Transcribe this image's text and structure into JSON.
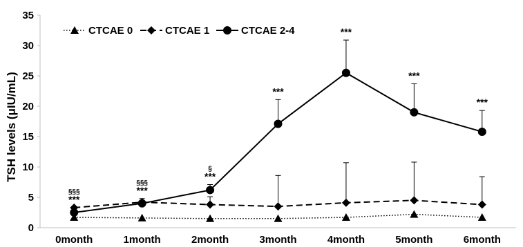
{
  "chart_data": {
    "type": "line",
    "title": "",
    "xlabel": "",
    "ylabel": "TSH levels (μIU/mL)",
    "categories": [
      "0month",
      "1month",
      "2month",
      "3month",
      "4month",
      "5month",
      "6month"
    ],
    "ylim": [
      0,
      35
    ],
    "yticks": [
      "0",
      "5",
      "10",
      "15",
      "20",
      "25",
      "30",
      "35"
    ],
    "grid": false,
    "legend_position": "top-left",
    "series": [
      {
        "name": "CTCAE 0",
        "marker": "triangle",
        "line_style": "dotted",
        "values": [
          1.7,
          1.6,
          1.5,
          1.5,
          1.7,
          2.2,
          1.7
        ],
        "error_plus": [
          0,
          0,
          0,
          0,
          0,
          0,
          0
        ]
      },
      {
        "name": "CTCAE 1",
        "marker": "diamond",
        "line_style": "dashed",
        "values": [
          3.3,
          4.2,
          3.8,
          3.5,
          4.1,
          4.5,
          3.8
        ],
        "error_plus": [
          0,
          0,
          1.3,
          5.1,
          6.6,
          6.3,
          4.6
        ]
      },
      {
        "name": "CTCAE 2-4",
        "marker": "circle",
        "line_style": "solid",
        "values": [
          2.5,
          4.0,
          6.2,
          17.1,
          25.5,
          19.0,
          15.8
        ],
        "error_plus": [
          0,
          0.8,
          0.9,
          4.0,
          5.4,
          4.7,
          3.5
        ]
      }
    ],
    "annotations": [
      {
        "category": "0month",
        "lines": [
          "§§§",
          "***"
        ]
      },
      {
        "category": "1month",
        "lines": [
          "§§§",
          "***"
        ]
      },
      {
        "category": "2month",
        "lines": [
          "§",
          "***"
        ]
      },
      {
        "category": "3month",
        "lines": [
          "***"
        ]
      },
      {
        "category": "4month",
        "lines": [
          "***"
        ]
      },
      {
        "category": "5month",
        "lines": [
          "***"
        ]
      },
      {
        "category": "6month",
        "lines": [
          "***"
        ]
      }
    ],
    "colors": {
      "line": "#000000",
      "axis": "#bfbfbf",
      "text": "#000000"
    }
  }
}
